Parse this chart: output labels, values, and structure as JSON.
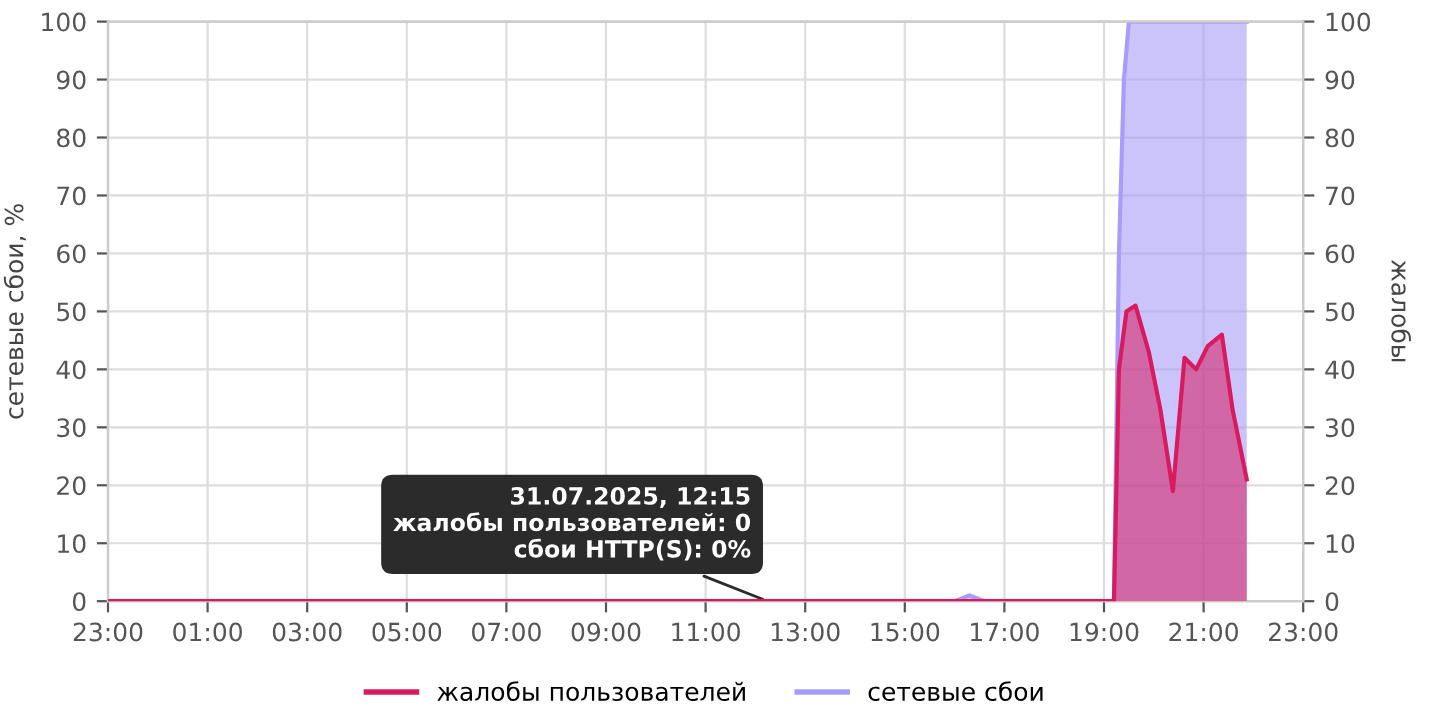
{
  "chart_data": {
    "type": "area",
    "ylabel": "сетевые сбои, %",
    "y2label": "жалобы",
    "xlim": [
      "2025-07-30T23:00",
      "2025-07-31T23:00"
    ],
    "xticks": [
      {
        "value": "2025-07-30T23:00",
        "label": "23:00"
      },
      {
        "value": "2025-07-31T01:00",
        "label": "01:00"
      },
      {
        "value": "2025-07-31T03:00",
        "label": "03:00"
      },
      {
        "value": "2025-07-31T05:00",
        "label": "05:00"
      },
      {
        "value": "2025-07-31T07:00",
        "label": "07:00"
      },
      {
        "value": "2025-07-31T09:00",
        "label": "09:00"
      },
      {
        "value": "2025-07-31T11:00",
        "label": "11:00"
      },
      {
        "value": "2025-07-31T13:00",
        "label": "13:00"
      },
      {
        "value": "2025-07-31T15:00",
        "label": "15:00"
      },
      {
        "value": "2025-07-31T17:00",
        "label": "17:00"
      },
      {
        "value": "2025-07-31T19:00",
        "label": "19:00"
      },
      {
        "value": "2025-07-31T21:00",
        "label": "21:00"
      },
      {
        "value": "2025-07-31T23:00",
        "label": "23:00"
      }
    ],
    "ylim": [
      0,
      100
    ],
    "yticks": [
      0,
      10,
      20,
      30,
      40,
      50,
      60,
      70,
      80,
      90,
      100
    ],
    "y2lim": [
      0,
      100
    ],
    "y2ticks": [
      0,
      10,
      20,
      30,
      40,
      50,
      60,
      70,
      80,
      90,
      100
    ],
    "grid": true,
    "legend": "bottom",
    "marker": "none",
    "line_style": "solid",
    "series": [
      {
        "name": "сетевые сбои",
        "color": "#a99cf8",
        "axis": "y",
        "x": [
          "2025-07-30T23:00",
          "2025-07-31T01:00",
          "2025-07-31T03:00",
          "2025-07-31T05:00",
          "2025-07-31T07:00",
          "2025-07-31T09:00",
          "2025-07-31T11:00",
          "2025-07-31T13:00",
          "2025-07-31T15:00",
          "2025-07-31T16:00",
          "2025-07-31T16:18",
          "2025-07-31T16:36",
          "2025-07-31T18:00",
          "2025-07-31T19:12",
          "2025-07-31T19:18",
          "2025-07-31T19:24",
          "2025-07-31T19:30",
          "2025-07-31T21:52"
        ],
        "values": [
          0,
          0,
          0,
          0,
          0,
          0,
          0,
          0,
          0,
          0,
          1,
          0,
          0,
          0,
          60,
          90,
          100,
          100
        ]
      },
      {
        "name": "жалобы пользователей",
        "color": "#d81b60",
        "axis": "y2",
        "x": [
          "2025-07-30T23:00",
          "2025-07-31T01:00",
          "2025-07-31T03:00",
          "2025-07-31T05:00",
          "2025-07-31T07:00",
          "2025-07-31T09:00",
          "2025-07-31T11:00",
          "2025-07-31T13:00",
          "2025-07-31T15:00",
          "2025-07-31T17:00",
          "2025-07-31T19:12",
          "2025-07-31T19:18",
          "2025-07-31T19:27",
          "2025-07-31T19:38",
          "2025-07-31T19:54",
          "2025-07-31T20:08",
          "2025-07-31T20:23",
          "2025-07-31T20:37",
          "2025-07-31T20:51",
          "2025-07-31T21:05",
          "2025-07-31T21:22",
          "2025-07-31T21:35",
          "2025-07-31T21:52"
        ],
        "values": [
          0,
          0,
          0,
          0,
          0,
          0,
          0,
          0,
          0,
          0,
          0,
          40,
          50,
          51,
          43,
          33,
          19,
          42,
          40,
          44,
          46,
          33,
          21
        ]
      }
    ],
    "annotations": [
      {
        "text": "31.07.2025, 12:15\nжалобы пользователей: 0\nсбои HTTP(S): 0%",
        "x": "2025-07-31T12:15",
        "y": 0
      }
    ]
  }
}
